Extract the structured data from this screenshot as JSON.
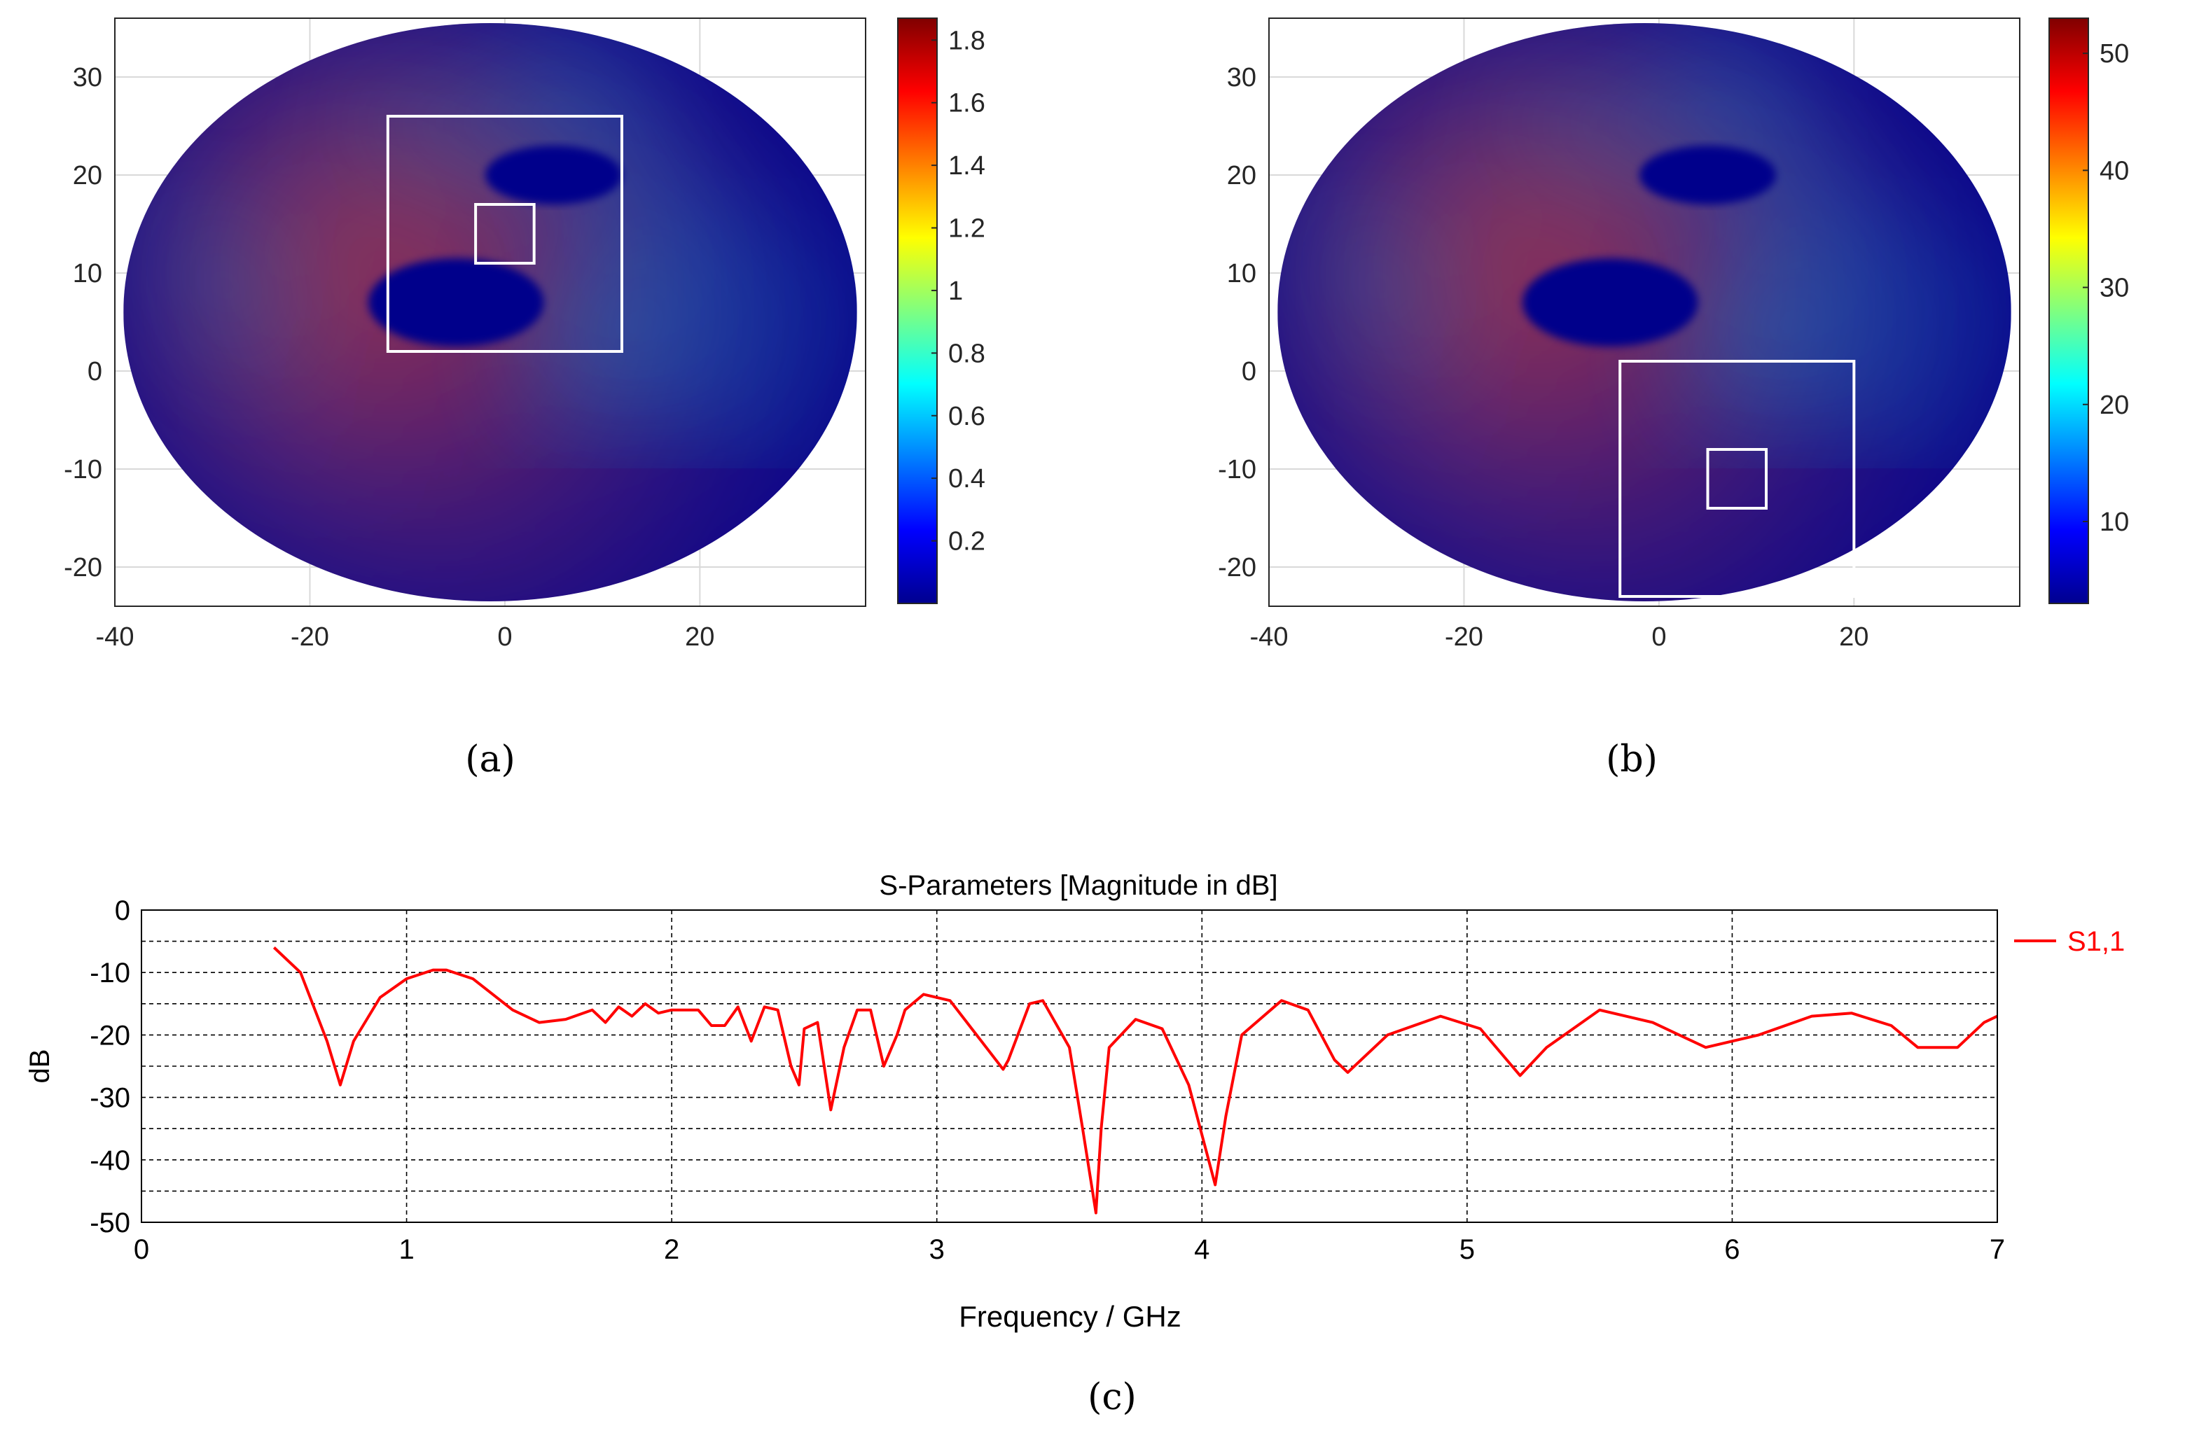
{
  "figure": {
    "panel_labels": [
      "(a)",
      "(b)",
      "(c)"
    ]
  },
  "colors": {
    "axis": "#262626",
    "grid": "#d9d9d9",
    "box": "#ffffff",
    "line": "#ff0000",
    "hot": "#e3200a",
    "cold": "#00008b"
  },
  "chart_data": [
    {
      "id": "a",
      "type": "heatmap",
      "title": "",
      "xlim": [
        -40,
        37
      ],
      "ylim": [
        -24,
        36
      ],
      "xticks": [
        "-40",
        "-20",
        "0",
        "20"
      ],
      "yticks": [
        "30",
        "20",
        "10",
        "0",
        "-10",
        "-20"
      ],
      "colorbar": {
        "range": [
          0,
          1.87
        ],
        "ticks": [
          "1.8",
          "1.6",
          "1.4",
          "1.2",
          "1",
          "0.8",
          "0.6",
          "0.4",
          "0.2"
        ]
      },
      "boxes": [
        {
          "x0": -12,
          "x1": 12,
          "y0": 2,
          "y1": 26
        },
        {
          "x0": -3,
          "x1": 3,
          "y0": 11,
          "y1": 17
        }
      ]
    },
    {
      "id": "b",
      "type": "heatmap",
      "title": "",
      "xlim": [
        -40,
        37
      ],
      "ylim": [
        -24,
        36
      ],
      "xticks": [
        "-40",
        "-20",
        "0",
        "20"
      ],
      "yticks": [
        "30",
        "20",
        "10",
        "0",
        "-10",
        "-20"
      ],
      "colorbar": {
        "range": [
          3,
          53
        ],
        "ticks": [
          "50",
          "40",
          "30",
          "20",
          "10"
        ]
      },
      "boxes": [
        {
          "x0": -4,
          "x1": 20,
          "y0": -23,
          "y1": 1
        },
        {
          "x0": 5,
          "x1": 11,
          "y0": -14,
          "y1": -8
        }
      ]
    },
    {
      "id": "c",
      "type": "line",
      "title": "S-Parameters [Magnitude in dB]",
      "xlabel": "Frequency / GHz",
      "ylabel": "dB",
      "xlim": [
        0,
        7
      ],
      "ylim": [
        -50,
        0
      ],
      "xticks": [
        "0",
        "1",
        "2",
        "3",
        "4",
        "5",
        "6",
        "7"
      ],
      "yticks": [
        "0",
        "-10",
        "-20",
        "-30",
        "-40",
        "-50"
      ],
      "legend": "right",
      "series": [
        {
          "name": "S1,1",
          "x": [
            0.5,
            0.6,
            0.7,
            0.75,
            0.8,
            0.9,
            1.0,
            1.1,
            1.15,
            1.25,
            1.4,
            1.5,
            1.6,
            1.7,
            1.75,
            1.8,
            1.85,
            1.9,
            1.95,
            2.0,
            2.1,
            2.15,
            2.2,
            2.25,
            2.3,
            2.35,
            2.4,
            2.45,
            2.48,
            2.5,
            2.55,
            2.6,
            2.65,
            2.7,
            2.75,
            2.8,
            2.85,
            2.88,
            2.95,
            3.05,
            3.15,
            3.25,
            3.27,
            3.35,
            3.4,
            3.5,
            3.55,
            3.6,
            3.62,
            3.65,
            3.75,
            3.85,
            3.95,
            4.05,
            4.09,
            4.15,
            4.3,
            4.4,
            4.5,
            4.55,
            4.7,
            4.9,
            5.05,
            5.2,
            5.3,
            5.5,
            5.7,
            5.9,
            6.1,
            6.3,
            6.45,
            6.6,
            6.7,
            6.85,
            6.95,
            7.0
          ],
          "y": [
            -6,
            -10,
            -21,
            -28,
            -21,
            -14,
            -11,
            -9.6,
            -9.6,
            -11,
            -16,
            -18,
            -17.5,
            -16,
            -18,
            -15.5,
            -17,
            -15,
            -16.5,
            -16,
            -16,
            -18.5,
            -18.5,
            -15.5,
            -21,
            -15.5,
            -16,
            -25,
            -28,
            -19,
            -18,
            -32,
            -22,
            -16,
            -16,
            -25,
            -20,
            -16,
            -13.5,
            -14.5,
            -20,
            -25.5,
            -24,
            -15,
            -14.5,
            -22,
            -35,
            -48.5,
            -35,
            -22,
            -17.5,
            -19,
            -28,
            -44,
            -33,
            -20,
            -14.5,
            -16,
            -24,
            -26,
            -20,
            -17,
            -19,
            -26.5,
            -22,
            -16,
            -18,
            -22,
            -20,
            -17,
            -16.5,
            -18.5,
            -22,
            -22,
            -18,
            -17
          ]
        }
      ]
    }
  ]
}
